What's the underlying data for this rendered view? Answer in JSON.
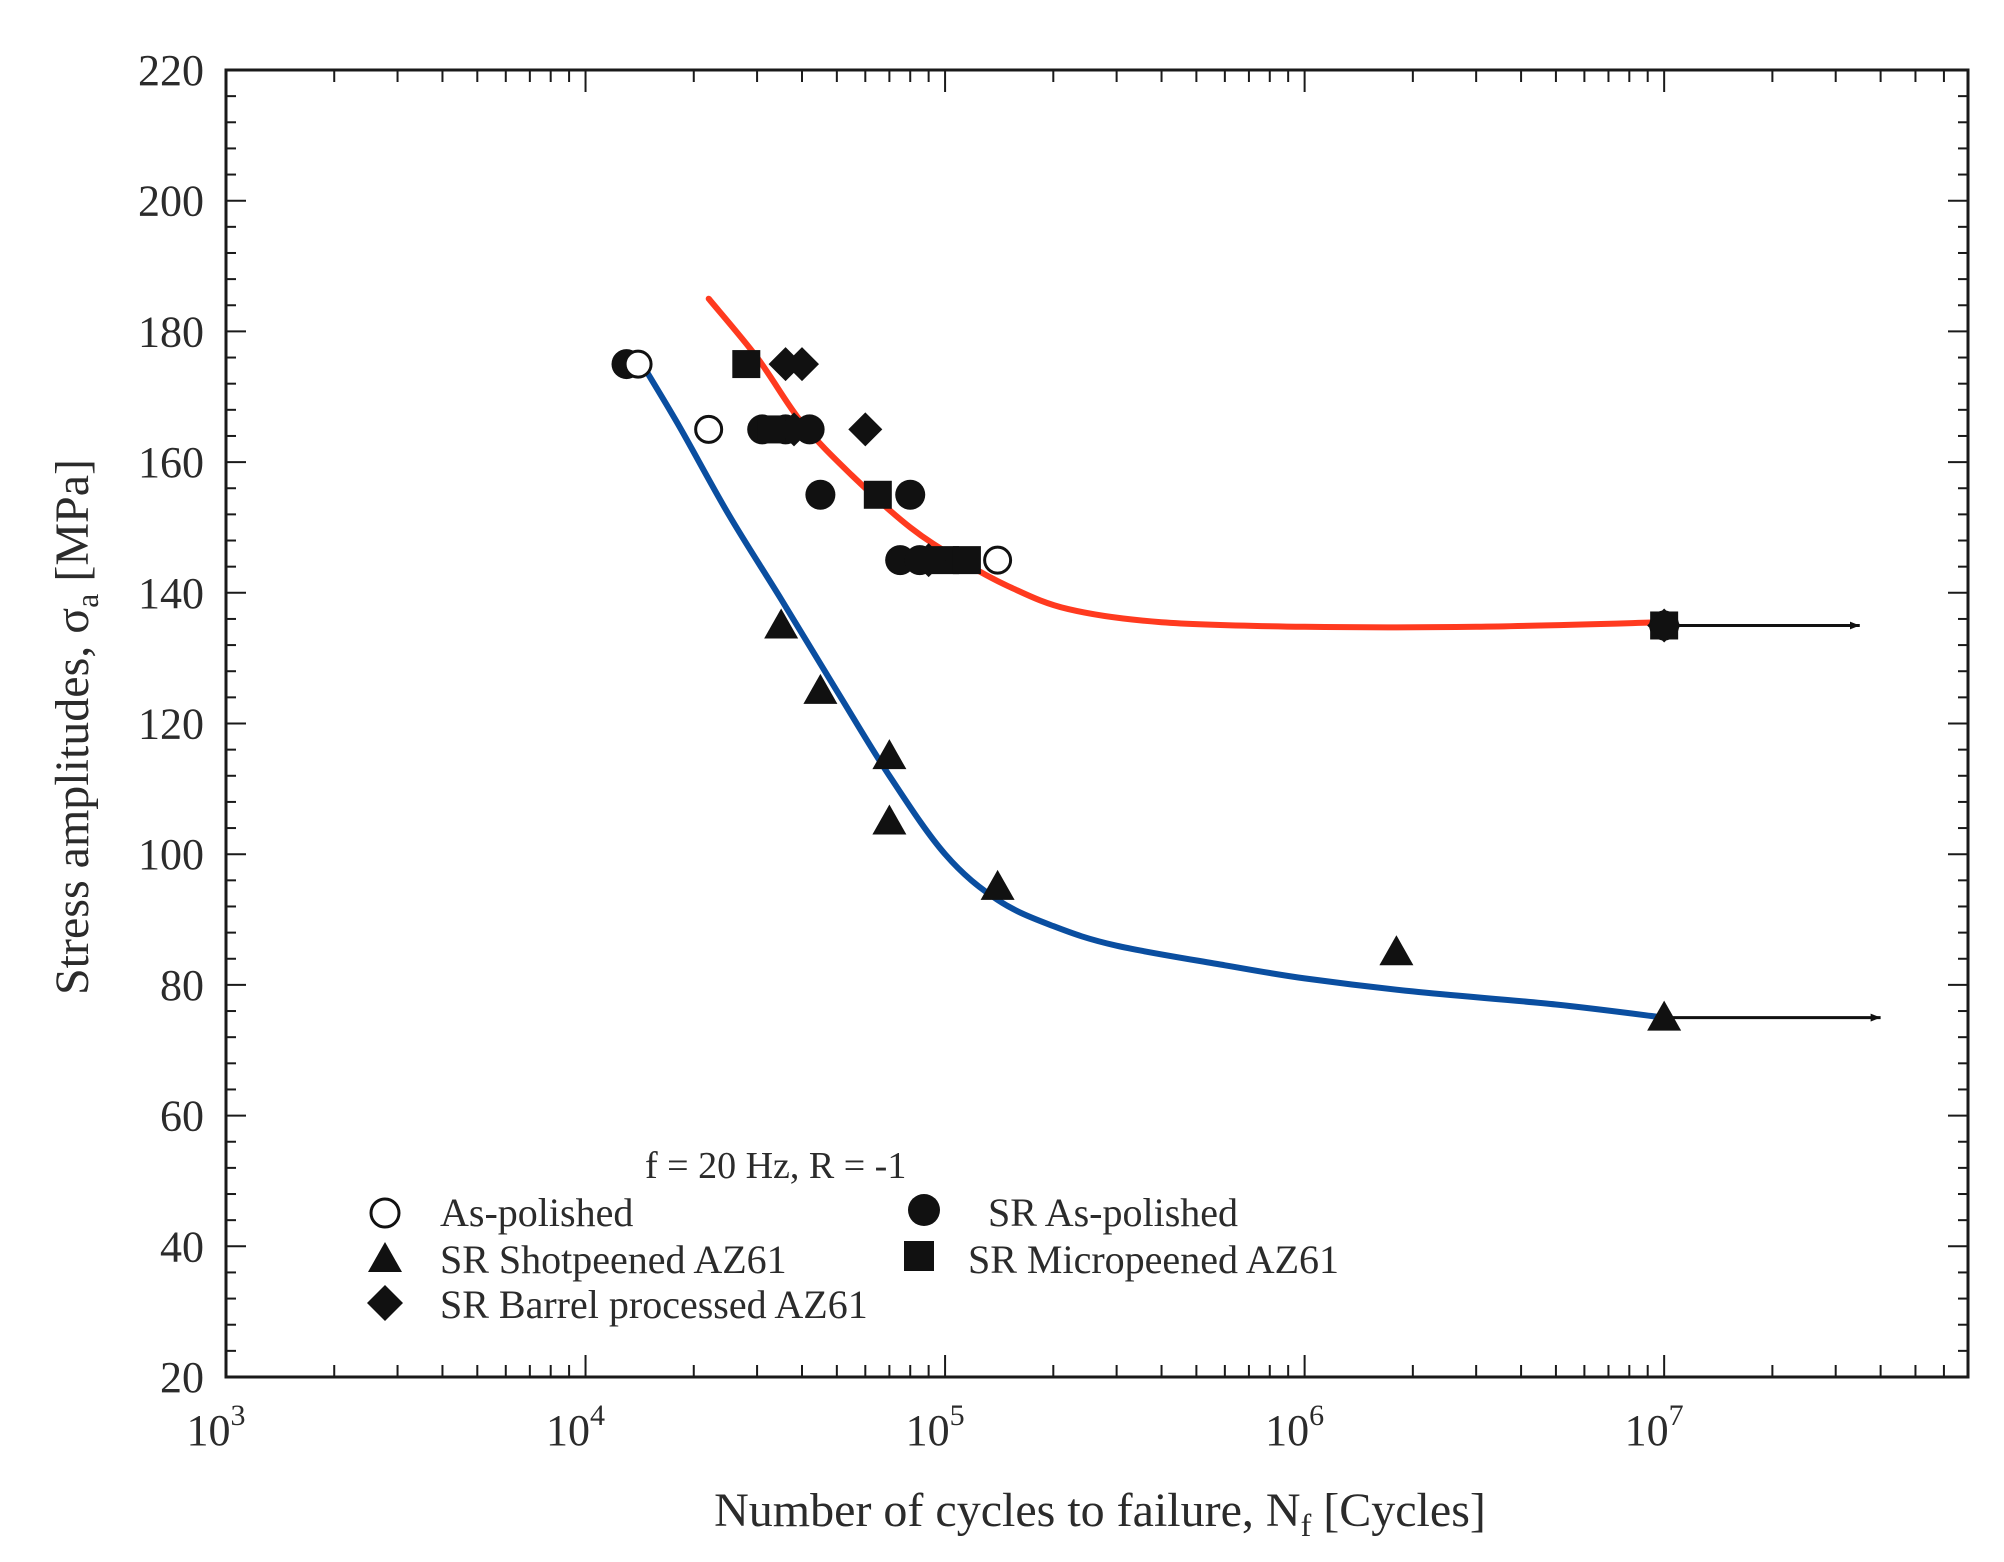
{
  "chart_data": {
    "type": "scatter",
    "title": "",
    "xlabel": {
      "main": "Number of cycles to failure, N",
      "sub": "f",
      "unit": " [Cycles]"
    },
    "ylabel": {
      "main": "Stress amplitudes, σ",
      "sub": "a",
      "unit": " [MPa]"
    },
    "xscale": "log",
    "xlim": [
      1000,
      70000000
    ],
    "ylim": [
      20,
      220
    ],
    "xticks": [
      {
        "value": 1000,
        "base": "10",
        "exp": "3"
      },
      {
        "value": 10000,
        "base": "10",
        "exp": "4"
      },
      {
        "value": 100000,
        "base": "10",
        "exp": "5"
      },
      {
        "value": 1000000,
        "base": "10",
        "exp": "6"
      },
      {
        "value": 10000000,
        "base": "10",
        "exp": "7"
      }
    ],
    "yticks": [
      20,
      40,
      60,
      80,
      100,
      120,
      140,
      160,
      180,
      200,
      220
    ],
    "test_condition": "f = 20 Hz, R = -1",
    "legend_position": "bottom-left",
    "series": [
      {
        "name": "As-polished",
        "marker": "circle-open",
        "points": [
          [
            14000,
            175
          ],
          [
            22000,
            165
          ],
          [
            140000,
            145
          ]
        ]
      },
      {
        "name": "SR As-polished",
        "marker": "circle-filled",
        "points": [
          [
            13000,
            175
          ],
          [
            31000,
            165
          ],
          [
            36000,
            165
          ],
          [
            42000,
            165
          ],
          [
            45000,
            155
          ],
          [
            75000,
            145
          ],
          [
            80000,
            155
          ],
          [
            85000,
            145
          ],
          [
            10000000,
            135
          ]
        ]
      },
      {
        "name": "SR Shotpeened AZ61",
        "marker": "triangle",
        "points": [
          [
            35000,
            135
          ],
          [
            45000,
            125
          ],
          [
            70000,
            115
          ],
          [
            70000,
            105
          ],
          [
            140000,
            95
          ],
          [
            1800000,
            85
          ],
          [
            10000000,
            75
          ]
        ]
      },
      {
        "name": "SR Micropeened AZ61",
        "marker": "square",
        "points": [
          [
            28000,
            175
          ],
          [
            33000,
            165
          ],
          [
            65000,
            155
          ],
          [
            100000,
            145
          ],
          [
            115000,
            145
          ],
          [
            10000000,
            135
          ]
        ]
      },
      {
        "name": "SR Barrel processed AZ61",
        "marker": "diamond",
        "points": [
          [
            36000,
            175
          ],
          [
            40000,
            175
          ],
          [
            38000,
            165
          ],
          [
            60000,
            165
          ],
          [
            90000,
            145
          ],
          [
            10000000,
            135
          ]
        ]
      }
    ],
    "fit_curves": [
      {
        "name": "fit-upper",
        "color": "#ff3a1f",
        "points": [
          [
            22000,
            185
          ],
          [
            30000,
            176
          ],
          [
            40000,
            166
          ],
          [
            55000,
            158
          ],
          [
            80000,
            150
          ],
          [
            110000,
            145
          ],
          [
            150000,
            141
          ],
          [
            220000,
            137.5
          ],
          [
            400000,
            135.5
          ],
          [
            1000000,
            134.8
          ],
          [
            3000000,
            134.8
          ],
          [
            10000000,
            135.5
          ]
        ]
      },
      {
        "name": "fit-lower",
        "color": "#0a4ea0",
        "points": [
          [
            14000,
            176
          ],
          [
            18000,
            166
          ],
          [
            25000,
            152
          ],
          [
            35000,
            139
          ],
          [
            50000,
            125
          ],
          [
            70000,
            112
          ],
          [
            100000,
            100
          ],
          [
            140000,
            93
          ],
          [
            200000,
            89
          ],
          [
            300000,
            86
          ],
          [
            600000,
            83
          ],
          [
            1000000,
            81
          ],
          [
            2000000,
            79
          ],
          [
            5000000,
            77
          ],
          [
            10000000,
            75
          ]
        ]
      }
    ],
    "runouts": [
      {
        "from": 10000000,
        "to": 35000000,
        "y": 135
      },
      {
        "from": 10000000,
        "to": 40000000,
        "y": 75
      }
    ],
    "legend": [
      {
        "label": "As-polished",
        "marker": "circle-open"
      },
      {
        "label": "SR As-polished",
        "marker": "circle-filled"
      },
      {
        "label": "SR Shotpeened AZ61",
        "marker": "triangle"
      },
      {
        "label": "SR Micropeened AZ61",
        "marker": "square"
      },
      {
        "label": "SR Barrel processed AZ61",
        "marker": "diamond"
      }
    ]
  }
}
